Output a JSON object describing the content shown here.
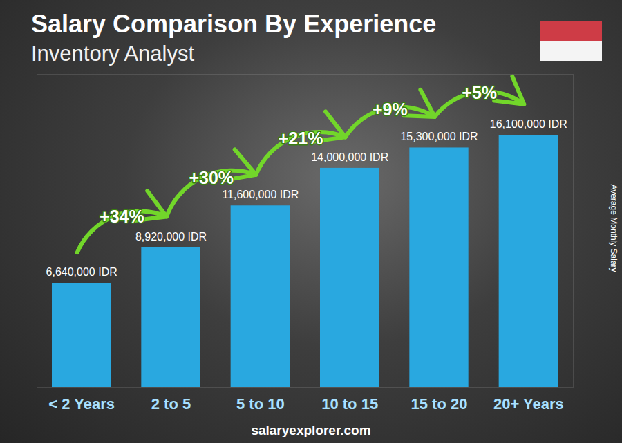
{
  "chart_data": {
    "type": "bar",
    "title": "Salary Comparison By Experience",
    "subtitle": "Inventory Analyst",
    "categories": [
      "< 2 Years",
      "2 to 5",
      "5 to 10",
      "10 to 15",
      "15 to 20",
      "20+ Years"
    ],
    "values": [
      6640000,
      8920000,
      11600000,
      14000000,
      15300000,
      16100000
    ],
    "value_labels": [
      "6,640,000 IDR",
      "8,920,000 IDR",
      "11,600,000 IDR",
      "14,000,000 IDR",
      "15,300,000 IDR",
      "16,100,000 IDR"
    ],
    "data_labels": true,
    "color": "#29a8e0",
    "ylim": [
      0,
      20000000
    ],
    "y_label": "Average Monthly Salary",
    "annotations": [
      "+34%",
      "+30%",
      "+21%",
      "+9%",
      "+5%"
    ],
    "source": "salaryexplorer.com",
    "tick_labels": "x",
    "grid": false
  }
}
